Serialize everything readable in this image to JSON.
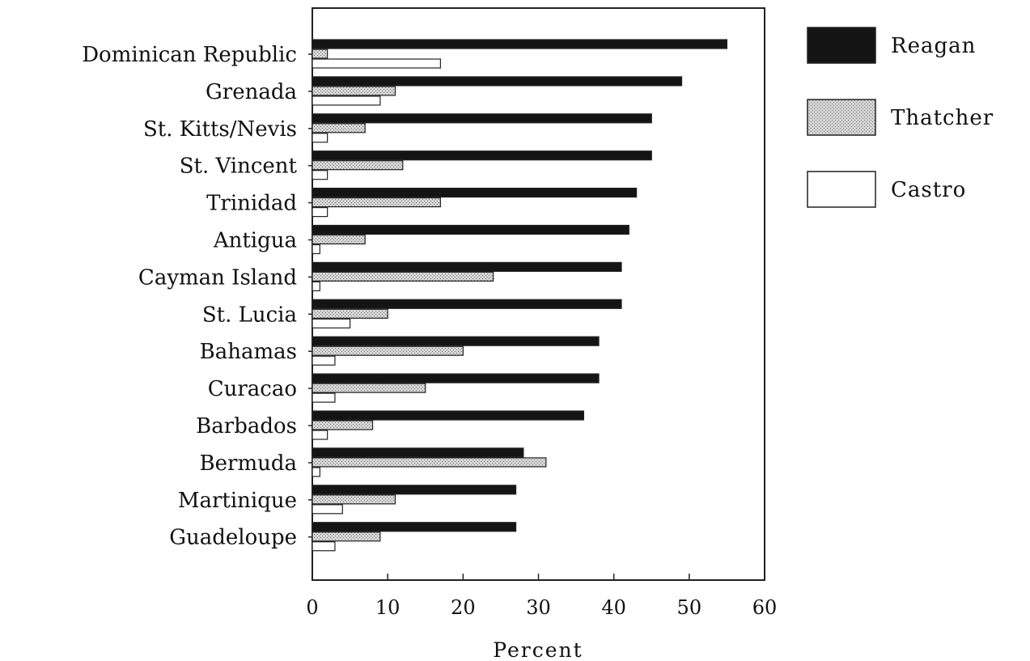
{
  "chart_data": {
    "type": "bar",
    "orientation": "horizontal",
    "xlabel": "Percent",
    "xlim": [
      0,
      60
    ],
    "xticks": [
      0,
      10,
      20,
      30,
      40,
      50,
      60
    ],
    "grid": false,
    "legend_position": "top-right, outside plot",
    "categories": [
      "Dominican Republic",
      "Grenada",
      "St. Kitts/Nevis",
      "St. Vincent",
      "Trinidad",
      "Antigua",
      "Cayman Island",
      "St. Lucia",
      "Bahamas",
      "Curacao",
      "Barbados",
      "Bermuda",
      "Martinique",
      "Guadeloupe"
    ],
    "series": [
      {
        "name": "Reagan",
        "fill": "solid",
        "color": "#141414",
        "values": [
          55,
          49,
          45,
          45,
          43,
          42,
          41,
          41,
          38,
          38,
          36,
          28,
          27,
          27
        ]
      },
      {
        "name": "Thatcher",
        "fill": "stippled",
        "color": "#bdbdbd",
        "values": [
          2,
          11,
          7,
          12,
          17,
          7,
          24,
          10,
          20,
          15,
          8,
          31,
          11,
          9
        ]
      },
      {
        "name": "Castro",
        "fill": "hollow",
        "color": "#ffffff",
        "values": [
          17,
          9,
          2,
          2,
          2,
          1,
          1,
          5,
          3,
          3,
          2,
          1,
          4,
          3
        ]
      }
    ]
  }
}
